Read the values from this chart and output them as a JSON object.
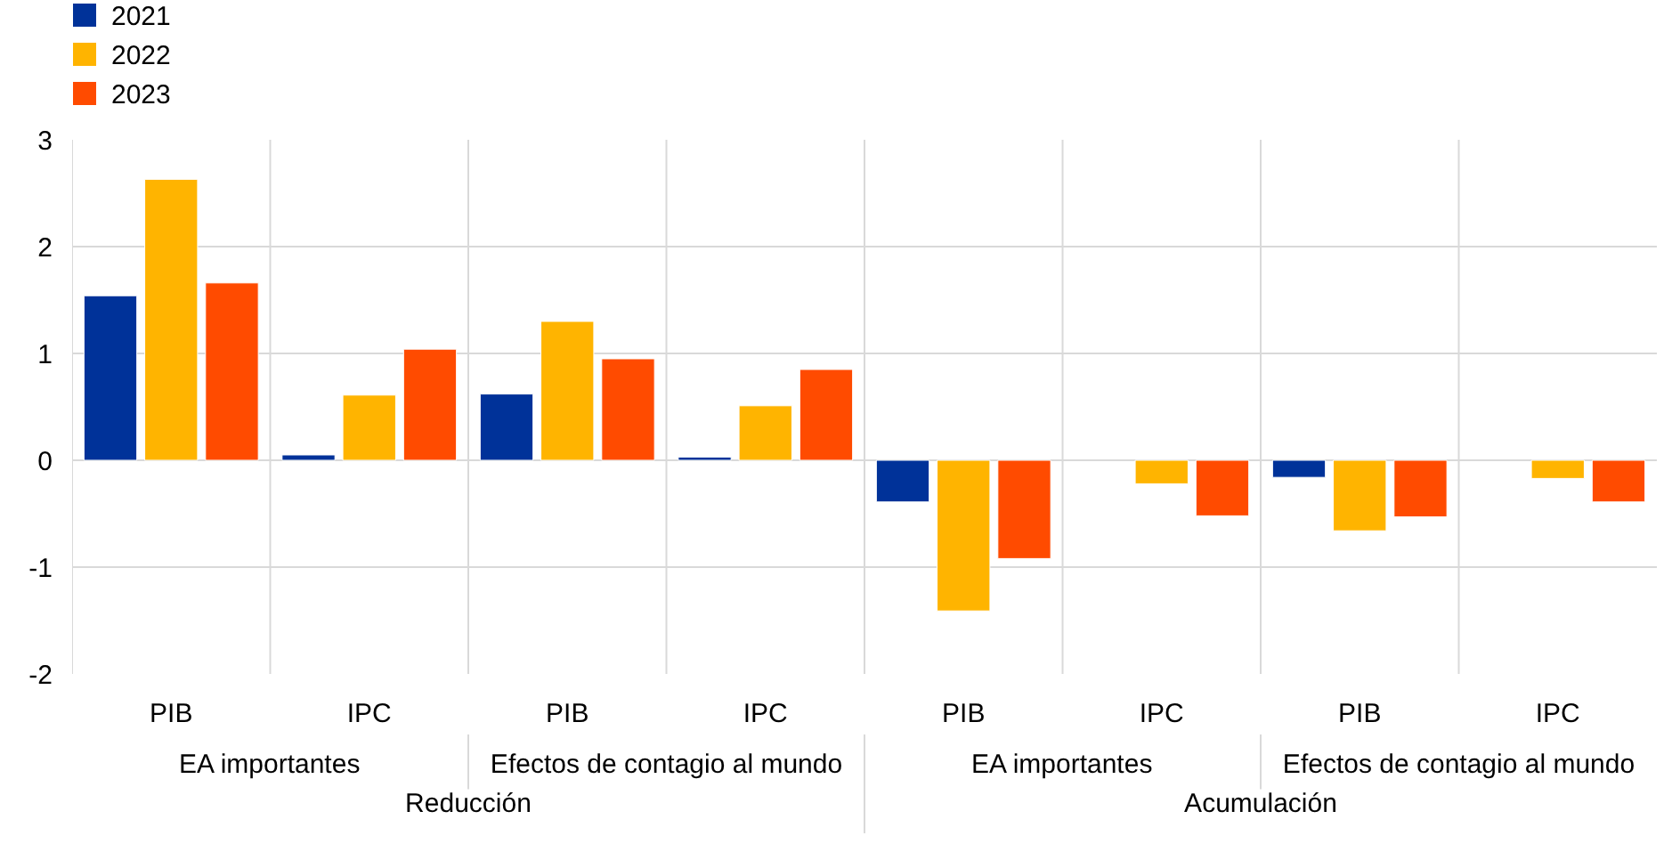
{
  "chart_data": {
    "type": "bar",
    "categories": [
      "PIB",
      "IPC",
      "PIB",
      "IPC",
      "PIB",
      "IPC",
      "PIB",
      "IPC"
    ],
    "annotations": [
      "EA importantes",
      "Efectos de contagio al mundo",
      "EA importantes",
      "Efectos de contagio al mundo",
      "Reducción",
      "Acumulación"
    ],
    "series": [
      {
        "name": "2021",
        "color": "#003299",
        "values": [
          1.54,
          0.05,
          0.62,
          0.03,
          -0.39,
          null,
          -0.16,
          null
        ]
      },
      {
        "name": "2022",
        "color": "#ffb400",
        "values": [
          2.63,
          0.61,
          1.3,
          0.51,
          -1.41,
          -0.22,
          -0.66,
          -0.17
        ]
      },
      {
        "name": "2023",
        "color": "#ff4b00",
        "values": [
          1.66,
          1.04,
          0.95,
          0.85,
          -0.92,
          -0.52,
          -0.53,
          -0.39
        ]
      }
    ],
    "ylim": [
      -2,
      3
    ],
    "yticks": [
      -2,
      -1,
      0,
      1,
      2,
      3
    ],
    "grid": "y",
    "legend": "top left"
  }
}
